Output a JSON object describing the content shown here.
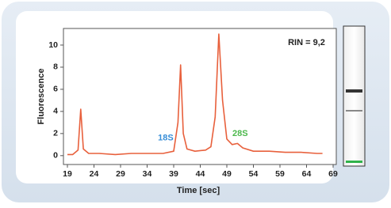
{
  "chart_data": {
    "type": "line",
    "x_label": "Time [sec]",
    "y_label": "Fluorescence",
    "x": [
      19,
      20,
      21,
      21.5,
      22,
      23,
      25,
      28,
      31,
      34,
      37,
      39,
      39.8,
      40.3,
      40.8,
      41.5,
      43,
      45,
      46,
      46.8,
      47.5,
      48.2,
      49,
      50,
      51,
      52,
      54,
      57,
      60,
      63,
      66,
      67
    ],
    "series": [
      {
        "color": "#e8603c",
        "values": [
          0.1,
          0.1,
          0.5,
          4.2,
          0.6,
          0.2,
          0.2,
          0.1,
          0.2,
          0.2,
          0.2,
          0.4,
          3,
          8.2,
          2,
          0.6,
          0.4,
          0.5,
          0.8,
          3.5,
          11,
          5,
          1.5,
          1,
          1.1,
          0.7,
          0.4,
          0.4,
          0.3,
          0.3,
          0.2,
          0.2
        ]
      }
    ],
    "xlim": [
      19,
      69
    ],
    "xticks": [
      19,
      24,
      29,
      34,
      39,
      44,
      49,
      54,
      59,
      64,
      69
    ],
    "ylim": [
      -0.8,
      11.5
    ],
    "yticks": [
      0,
      2,
      4,
      6,
      8,
      10
    ],
    "annotations": [
      {
        "text": "18S",
        "color": "#3a8fd8",
        "x": 37.5,
        "y": 1.6
      },
      {
        "text": "28S",
        "color": "#4cb84c",
        "x": 51.5,
        "y": 2.0
      },
      {
        "text": "RIN = 9,2",
        "color": "#222222",
        "x": 64,
        "y": 10.2
      }
    ]
  }
}
